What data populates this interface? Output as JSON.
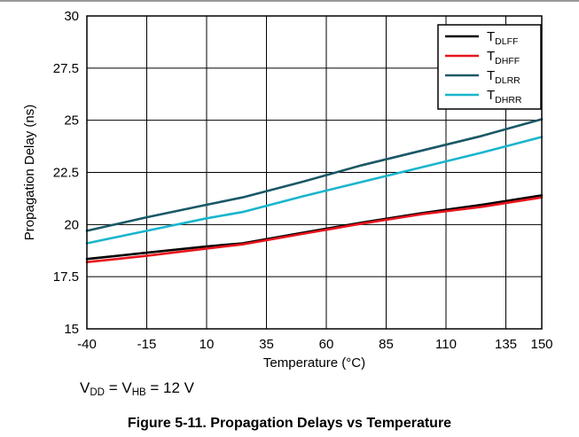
{
  "chart_data": {
    "type": "line",
    "title": "",
    "xlabel": "Temperature (°C)",
    "ylabel": "Propagation Delay (ns)",
    "xlim": [
      -40,
      150
    ],
    "ylim": [
      15,
      30
    ],
    "xticks": [
      -40,
      -15,
      10,
      35,
      60,
      85,
      110,
      135,
      150
    ],
    "yticks": [
      15,
      17.5,
      20,
      22.5,
      25,
      27.5,
      30
    ],
    "xtick_labels": [
      "-40",
      "-15",
      "10",
      "35",
      "60",
      "85",
      "110",
      "135",
      "150"
    ],
    "ytick_labels": [
      "15",
      "17.5",
      "20",
      "22.5",
      "25",
      "27.5",
      "30"
    ],
    "grid": true,
    "legend_position": "top-right",
    "series": [
      {
        "name": "T",
        "sub": "DLFF",
        "color": "#000000",
        "x": [
          -40,
          -15,
          10,
          25,
          50,
          75,
          100,
          125,
          150
        ],
        "y": [
          18.35,
          18.65,
          18.95,
          19.1,
          19.6,
          20.1,
          20.55,
          20.95,
          21.4
        ]
      },
      {
        "name": "T",
        "sub": "DHFF",
        "color": "#e8141c",
        "x": [
          -40,
          -15,
          10,
          25,
          50,
          75,
          100,
          125,
          150
        ],
        "y": [
          18.2,
          18.5,
          18.85,
          19.05,
          19.55,
          20.05,
          20.5,
          20.85,
          21.3
        ]
      },
      {
        "name": "T",
        "sub": "DLRR",
        "color": "#1a5866",
        "x": [
          -40,
          -15,
          10,
          25,
          50,
          75,
          100,
          125,
          150
        ],
        "y": [
          19.7,
          20.35,
          20.95,
          21.3,
          22.05,
          22.85,
          23.55,
          24.25,
          25.05
        ]
      },
      {
        "name": "T",
        "sub": "DHRR",
        "color": "#19b5cc",
        "x": [
          -40,
          -15,
          10,
          25,
          50,
          75,
          100,
          125,
          150
        ],
        "y": [
          19.1,
          19.7,
          20.3,
          20.6,
          21.35,
          22.05,
          22.75,
          23.45,
          24.2
        ]
      }
    ]
  },
  "note": {
    "v": "V",
    "dd_sub": "DD",
    "eq1": " = V",
    "hb_sub": "HB",
    "eq2": " = 12 V"
  },
  "caption": "Figure 5-11. Propagation Delays vs Temperature"
}
